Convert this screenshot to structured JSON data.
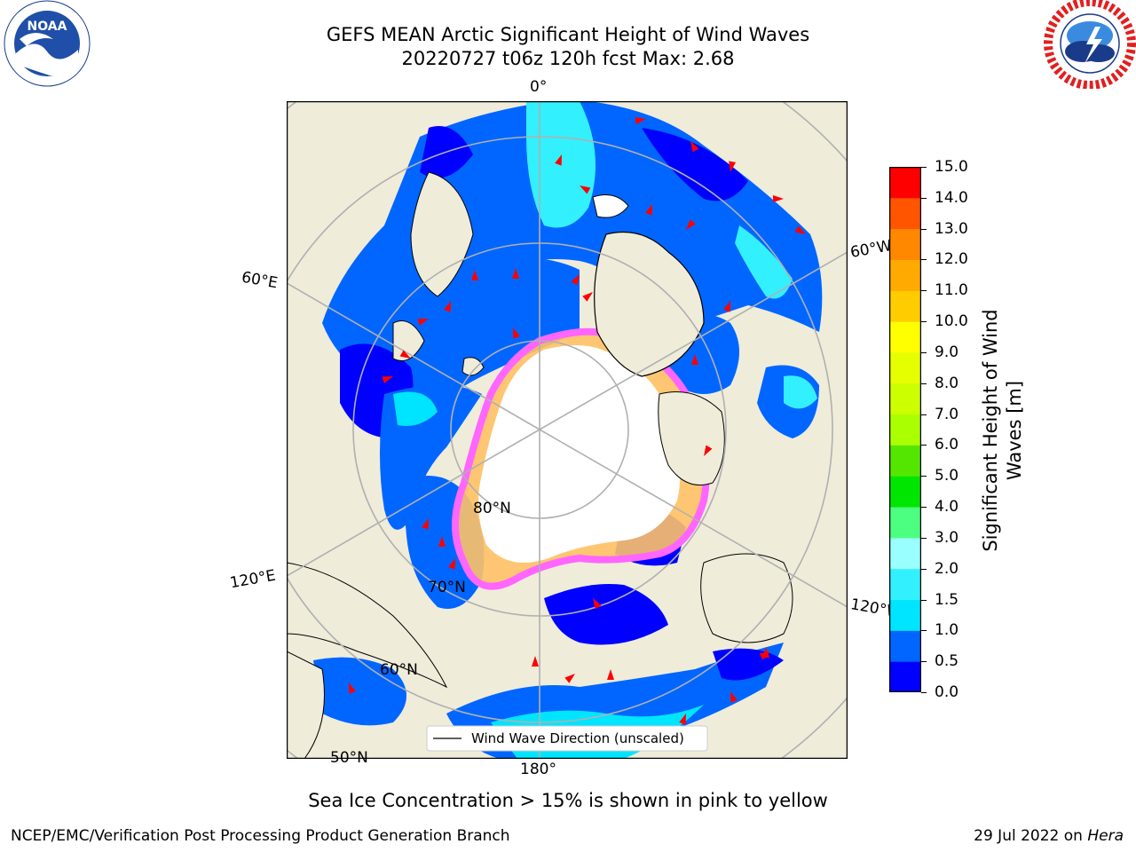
{
  "header": {
    "title_line1": "GEFS MEAN Arctic Significant Height of Wind Waves",
    "title_line2": "20220727 t06z 120h fcst   Max: 2.68"
  },
  "logos": {
    "noaa": {
      "text": "NOAA",
      "ring_text": "NATIONAL OCEANIC AND ATMOSPHERIC ADMINISTRATION · U.S. DEPARTMENT OF COMMERCE"
    },
    "nws": {
      "ring_text": "NATIONAL WEATHER SERVICE"
    }
  },
  "map": {
    "projection": "north-polar-stereographic",
    "longitude_labels": {
      "top": "0°",
      "upper_left": "60°E",
      "upper_right": "60°W",
      "lower_left": "120°E",
      "lower_right": "120°W",
      "bottom": "180°"
    },
    "latitude_labels": {
      "lat80": "80°N",
      "lat70": "70°N",
      "lat60": "60°N",
      "lat50": "50°N"
    },
    "legend": {
      "label": "Wind Wave Direction (unscaled)"
    },
    "colors": {
      "land": "#efecda",
      "ice_free_ocean_core": "#ffffff",
      "arrow": "#ff0000",
      "ice_pink": "#ff66ff",
      "ice_yellow": "#ffc266",
      "grid": "#b0b0b0"
    }
  },
  "colorbar": {
    "label": "Significant Height of Wind Waves [m]",
    "ticks": [
      "15.0",
      "14.0",
      "13.0",
      "12.0",
      "11.0",
      "10.0",
      "9.0",
      "8.0",
      "7.0",
      "6.0",
      "5.0",
      "4.0",
      "3.0",
      "2.0",
      "1.5",
      "1.0",
      "0.5",
      "0.0"
    ],
    "levels": [
      {
        "range": "0.0-0.5",
        "color": "#0000ff"
      },
      {
        "range": "0.5-1.0",
        "color": "#0066ff"
      },
      {
        "range": "1.0-1.5",
        "color": "#00e5ff"
      },
      {
        "range": "1.5-2.0",
        "color": "#33f0ff"
      },
      {
        "range": "2.0-3.0",
        "color": "#99ffff"
      },
      {
        "range": "3.0-4.0",
        "color": "#4dff80"
      },
      {
        "range": "4.0-5.0",
        "color": "#00e600"
      },
      {
        "range": "5.0-6.0",
        "color": "#55e600"
      },
      {
        "range": "6.0-7.0",
        "color": "#aaff00"
      },
      {
        "range": "7.0-8.0",
        "color": "#ccff00"
      },
      {
        "range": "8.0-9.0",
        "color": "#e6ff00"
      },
      {
        "range": "9.0-10.0",
        "color": "#ffff00"
      },
      {
        "range": "10.0-11.0",
        "color": "#ffcc00"
      },
      {
        "range": "11.0-12.0",
        "color": "#ffaa00"
      },
      {
        "range": "12.0-13.0",
        "color": "#ff8800"
      },
      {
        "range": "13.0-14.0",
        "color": "#ff5500"
      },
      {
        "range": "14.0-15.0",
        "color": "#ff0000"
      }
    ]
  },
  "subcaption": "Sea Ice Concentration > 15% is shown in pink to yellow",
  "footer": {
    "left": "NCEP/EMC/Verification Post Processing Product Generation Branch",
    "right_prefix": "29 Jul 2022 on ",
    "right_host": "Hera"
  }
}
